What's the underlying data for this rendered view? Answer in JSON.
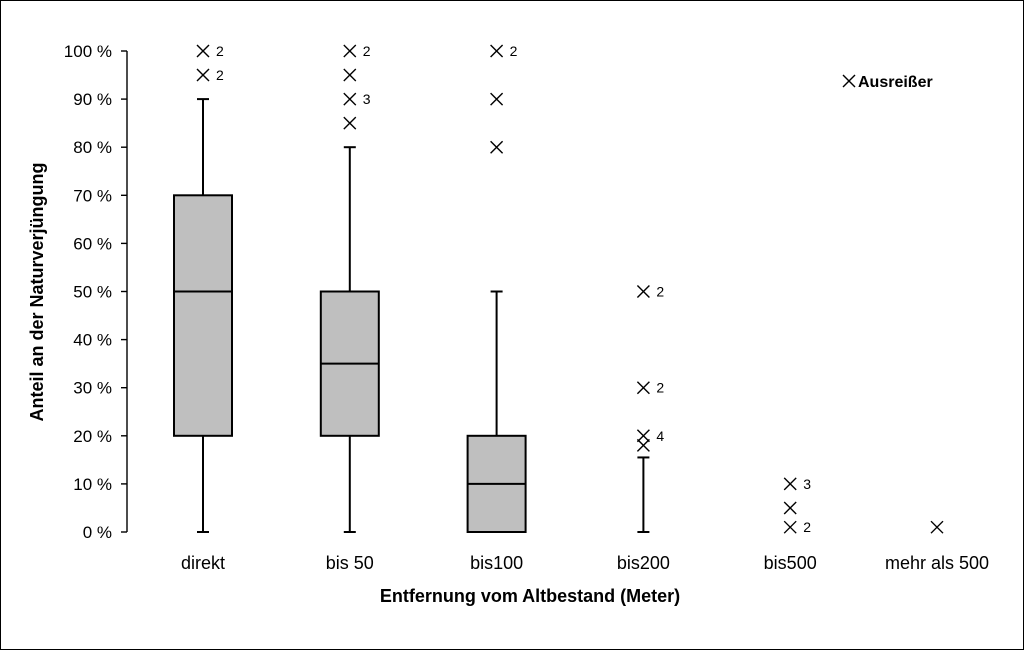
{
  "chart_data": {
    "type": "boxplot",
    "xlabel": "Entfernung vom Altbestand (Meter)",
    "ylabel": "Anteil an der Naturverjüngung",
    "ylim": [
      0,
      100
    ],
    "yticks": [
      "0 %",
      "10 %",
      "20 %",
      "30 %",
      "40 %",
      "50 %",
      "60 %",
      "70 %",
      "80 %",
      "90 %",
      "100 %"
    ],
    "grid": false,
    "legend": {
      "label": "Ausreißer",
      "position": "top-right"
    },
    "categories": [
      {
        "label": "direkt",
        "min": 0,
        "q1": 20,
        "median": 50,
        "q3": 70,
        "max": 90,
        "outliers": [
          {
            "value": 100,
            "count": "2"
          },
          {
            "value": 95,
            "count": "2"
          }
        ]
      },
      {
        "label": "bis 50",
        "min": 0,
        "q1": 20,
        "median": 35,
        "q3": 50,
        "max": 80,
        "outliers": [
          {
            "value": 100,
            "count": "2"
          },
          {
            "value": 95,
            "count": ""
          },
          {
            "value": 90,
            "count": "3"
          },
          {
            "value": 85,
            "count": ""
          }
        ]
      },
      {
        "label": "bis100",
        "min": 0,
        "q1": 0,
        "median": 10,
        "q3": 20,
        "max": 50,
        "outliers": [
          {
            "value": 100,
            "count": "2"
          },
          {
            "value": 90,
            "count": ""
          },
          {
            "value": 80,
            "count": ""
          }
        ]
      },
      {
        "label": "bis200",
        "min": 0,
        "max": 15.5,
        "outliers": [
          {
            "value": 50,
            "count": "2"
          },
          {
            "value": 30,
            "count": "2"
          },
          {
            "value": 20,
            "count": "4"
          },
          {
            "value": 18,
            "count": ""
          }
        ]
      },
      {
        "label": "bis500",
        "outliers": [
          {
            "value": 10,
            "count": "3"
          },
          {
            "value": 5,
            "count": ""
          },
          {
            "value": 1,
            "count": "2"
          }
        ]
      },
      {
        "label": "mehr als 500",
        "outliers": [
          {
            "value": 1,
            "count": ""
          }
        ]
      }
    ],
    "colors": {
      "box_fill": "#bfbfbf",
      "stroke": "#000000"
    }
  }
}
